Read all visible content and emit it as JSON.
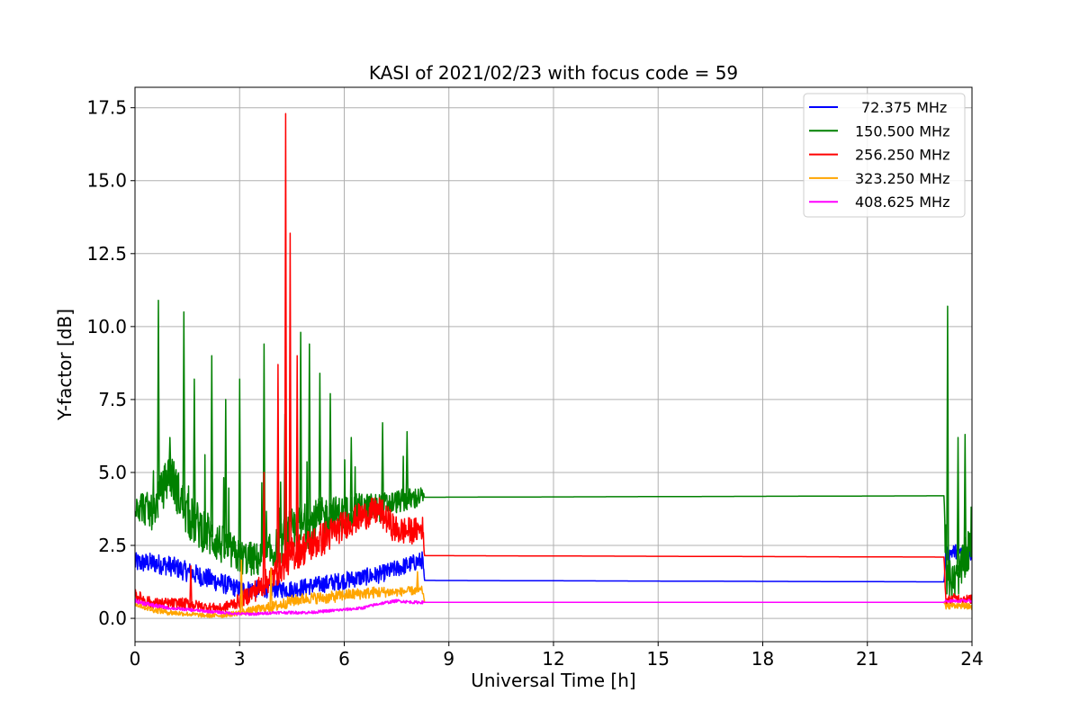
{
  "chart_data": {
    "type": "line",
    "title": "KASI of 2021/02/23 with focus code = 59",
    "xlabel": "Universal Time [h]",
    "ylabel": "Y-factor [dB]",
    "xlim": [
      0,
      24
    ],
    "ylim": [
      -0.8,
      18.2
    ],
    "xticks": [
      0,
      3,
      6,
      9,
      12,
      15,
      18,
      21,
      24
    ],
    "yticks": [
      0.0,
      2.5,
      5.0,
      7.5,
      10.0,
      12.5,
      15.0,
      17.5
    ],
    "ytick_labels": [
      "0.0",
      "2.5",
      "5.0",
      "7.5",
      "10.0",
      "12.5",
      "15.0",
      "17.5"
    ],
    "grid": true,
    "legend_position": "top-right",
    "series": [
      {
        "name": "72.375 MHz",
        "color": "#0000ff",
        "x": [
          0,
          0.5,
          1,
          1.5,
          2,
          2.5,
          3,
          3.5,
          4,
          4.5,
          5,
          5.5,
          6,
          6.5,
          7,
          7.5,
          8,
          8.25,
          8.3,
          23.2,
          23.25,
          23.5,
          24
        ],
        "y": [
          1.9,
          1.9,
          1.8,
          1.6,
          1.4,
          1.2,
          1.0,
          1.0,
          1.0,
          1.0,
          1.1,
          1.2,
          1.3,
          1.4,
          1.5,
          1.7,
          1.9,
          2.0,
          1.3,
          1.25,
          2.2,
          2.3,
          2.2
        ],
        "band": [
          0.7,
          0.7,
          0.7,
          0.7,
          0.7,
          0.7,
          0.6,
          0.6,
          0.6,
          0.6,
          0.6,
          0.6,
          0.6,
          0.6,
          0.6,
          0.6,
          0.6,
          0.6,
          0,
          0,
          0.5,
          0.5,
          0.5
        ]
      },
      {
        "name": "150.500 MHz",
        "color": "#008000",
        "x": [
          0,
          0.5,
          1,
          1.5,
          2,
          2.5,
          3,
          3.5,
          4,
          4.5,
          5,
          5.5,
          6,
          6.5,
          7,
          7.5,
          8,
          8.25,
          8.3,
          23.2,
          23.25,
          23.5,
          24
        ],
        "y": [
          4.0,
          3.6,
          5.0,
          3.5,
          3.0,
          2.5,
          2.1,
          2.0,
          2.3,
          3.0,
          3.2,
          3.5,
          3.6,
          3.8,
          3.8,
          4.0,
          4.1,
          4.2,
          4.15,
          4.2,
          1.5,
          1.2,
          2.5
        ],
        "band": [
          1.2,
          1.2,
          1.6,
          1.6,
          1.6,
          1.4,
          1.2,
          1.2,
          1.4,
          1.6,
          1.6,
          1.4,
          1.2,
          1.0,
          1.0,
          0.8,
          0.8,
          0.6,
          0,
          0,
          1.4,
          1.4,
          1.4
        ],
        "spikes": [
          [
            0.67,
            10.9
          ],
          [
            1.0,
            6.2
          ],
          [
            1.4,
            10.5
          ],
          [
            1.7,
            8.2
          ],
          [
            2.2,
            9.0
          ],
          [
            2.6,
            7.5
          ],
          [
            3.0,
            8.2
          ],
          [
            3.7,
            9.4
          ],
          [
            4.3,
            7.0
          ],
          [
            4.75,
            9.8
          ],
          [
            5.0,
            9.4
          ],
          [
            5.3,
            8.4
          ],
          [
            5.6,
            7.7
          ],
          [
            6.2,
            6.2
          ],
          [
            7.1,
            6.7
          ],
          [
            7.8,
            6.4
          ],
          [
            23.3,
            10.7
          ],
          [
            23.6,
            6.2
          ],
          [
            23.8,
            6.3
          ]
        ]
      },
      {
        "name": "256.250 MHz",
        "color": "#ff0000",
        "x": [
          0,
          0.5,
          1,
          1.5,
          2,
          2.5,
          3,
          3.5,
          4,
          4.5,
          5,
          5.5,
          6,
          6.5,
          7,
          7.5,
          8,
          8.25,
          8.3,
          23.2,
          23.25,
          23.5,
          24
        ],
        "y": [
          0.8,
          0.5,
          0.5,
          0.5,
          0.4,
          0.35,
          0.6,
          1.0,
          1.5,
          2.2,
          2.5,
          2.8,
          3.2,
          3.5,
          3.7,
          3.0,
          3.0,
          3.1,
          2.15,
          2.1,
          0.6,
          0.7,
          0.65
        ],
        "band": [
          0.4,
          0.4,
          0.4,
          0.4,
          0.3,
          0.3,
          0.5,
          0.8,
          1.0,
          1.2,
          1.2,
          1.2,
          1.0,
          1.0,
          1.0,
          1.0,
          0.9,
          0.8,
          0,
          0,
          0.3,
          0.3,
          0.3
        ],
        "spikes": [
          [
            1.6,
            1.8
          ],
          [
            4.32,
            17.3
          ],
          [
            4.45,
            13.2
          ],
          [
            4.1,
            8.7
          ],
          [
            4.65,
            9.0
          ],
          [
            3.7,
            5.0
          ]
        ]
      },
      {
        "name": "323.250 MHz",
        "color": "#ffa500",
        "x": [
          0,
          0.5,
          1,
          1.5,
          2,
          2.5,
          3,
          3.5,
          4,
          4.5,
          5,
          5.5,
          6,
          6.5,
          7,
          7.5,
          8,
          8.25,
          8.3,
          23.2,
          23.25,
          23.5,
          24
        ],
        "y": [
          0.5,
          0.3,
          0.2,
          0.15,
          0.1,
          0.1,
          0.2,
          0.3,
          0.4,
          0.6,
          0.7,
          0.7,
          0.8,
          0.85,
          0.9,
          0.9,
          0.95,
          0.95,
          0.55,
          0.55,
          0.4,
          0.45,
          0.4
        ],
        "band": [
          0.2,
          0.2,
          0.2,
          0.15,
          0.15,
          0.15,
          0.2,
          0.3,
          0.4,
          0.4,
          0.4,
          0.4,
          0.4,
          0.4,
          0.4,
          0.3,
          0.3,
          0.3,
          0,
          0,
          0.2,
          0.2,
          0.2
        ],
        "spikes": [
          [
            3.05,
            2.0
          ],
          [
            3.9,
            1.7
          ],
          [
            8.1,
            1.6
          ]
        ]
      },
      {
        "name": "408.625 MHz",
        "color": "#ff00ff",
        "x": [
          0,
          0.5,
          1,
          1.5,
          2,
          2.5,
          3,
          3.5,
          4,
          4.5,
          5,
          5.5,
          6,
          6.5,
          7,
          7.5,
          8,
          8.25,
          8.3,
          23.2,
          23.25,
          23.5,
          24
        ],
        "y": [
          0.6,
          0.45,
          0.35,
          0.3,
          0.25,
          0.2,
          0.15,
          0.15,
          0.2,
          0.2,
          0.2,
          0.25,
          0.3,
          0.35,
          0.5,
          0.6,
          0.55,
          0.55,
          0.55,
          0.55,
          0.6,
          0.6,
          0.6
        ],
        "band": [
          0.15,
          0.15,
          0.1,
          0.1,
          0.1,
          0.1,
          0.1,
          0.1,
          0.1,
          0.1,
          0.1,
          0.1,
          0.1,
          0.1,
          0.1,
          0.1,
          0.1,
          0.1,
          0,
          0,
          0.1,
          0.1,
          0.1
        ]
      }
    ]
  }
}
